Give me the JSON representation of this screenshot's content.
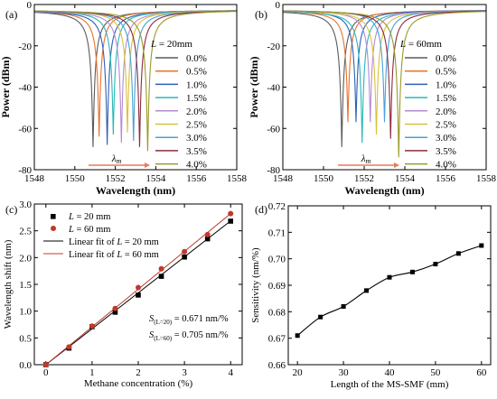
{
  "panels": {
    "a": {
      "label": "(a)",
      "xlabel": "Wavelength (nm)",
      "ylabel": "Power (dBm)",
      "xlim": [
        1548,
        1558
      ],
      "ylim": [
        -80,
        0
      ],
      "xticks": [
        "1548",
        "1550",
        "1552",
        "1554",
        "1556",
        "1558"
      ],
      "yticks": [
        "0",
        "-20",
        "-40",
        "-60",
        "-80"
      ],
      "legend_title": "L = 20mm",
      "arrow_label": "λm"
    },
    "b": {
      "label": "(b)",
      "xlabel": "Wavelength (nm)",
      "ylabel": "Power (dBm)",
      "xlim": [
        1548,
        1558
      ],
      "ylim": [
        -80,
        0
      ],
      "xticks": [
        "1548",
        "1550",
        "1552",
        "1554",
        "1556",
        "1558"
      ],
      "yticks": [
        "0",
        "-20",
        "-40",
        "-60",
        "-80"
      ],
      "legend_title": "L = 60mm",
      "arrow_label": "λm"
    },
    "c": {
      "label": "(c)",
      "xlabel": "Methane concentration (%)",
      "ylabel": "Wavelength shift (nm)",
      "xlim": [
        -0.25,
        4.25
      ],
      "ylim": [
        0,
        3.0
      ],
      "xticks": [
        "0",
        "1",
        "2",
        "3",
        "4"
      ],
      "yticks": [
        "0.0",
        "0.5",
        "1.0",
        "1.5",
        "2.0",
        "2.5",
        "3.0"
      ],
      "legend": [
        "L = 20 mm",
        "L = 60 mm",
        "Linear fit of L = 20 mm",
        "Linear fit of L = 60 mm"
      ],
      "annotations": [
        "S(L=20) = 0.671 nm/%",
        "S(L=60) = 0.705 nm/%"
      ]
    },
    "d": {
      "label": "(d)",
      "xlabel": "Length of the MS-SMF (mm)",
      "ylabel": "Sensitivity (nm/%)",
      "xlim": [
        18,
        62
      ],
      "ylim": [
        0.66,
        0.72
      ],
      "xticks": [
        "20",
        "30",
        "40",
        "50",
        "60"
      ],
      "yticks": [
        "0.66",
        "0.67",
        "0.68",
        "0.69",
        "0.70",
        "0.71",
        "0.72"
      ]
    }
  },
  "chart_data": [
    {
      "panel": "a",
      "type": "line",
      "title": "",
      "xlabel": "Wavelength (nm)",
      "ylabel": "Power (dBm)",
      "xlim": [
        1548,
        1558
      ],
      "ylim": [
        -80,
        0
      ],
      "legend_title": "L = 20mm",
      "legend_position": "right",
      "series": [
        {
          "name": "0.0%",
          "dip_center": 1550.9,
          "dip_min": -69,
          "color": "#5b5b5b"
        },
        {
          "name": "0.5%",
          "dip_center": 1551.2,
          "dip_min": -64,
          "color": "#e8722a"
        },
        {
          "name": "1.0%",
          "dip_center": 1551.6,
          "dip_min": -68,
          "color": "#2f5fb5"
        },
        {
          "name": "1.5%",
          "dip_center": 1551.9,
          "dip_min": -63,
          "color": "#2bb6b8"
        },
        {
          "name": "2.0%",
          "dip_center": 1552.3,
          "dip_min": -67,
          "color": "#b48bd6"
        },
        {
          "name": "2.5%",
          "dip_center": 1552.6,
          "dip_min": -62,
          "color": "#d9c23a"
        },
        {
          "name": "3.0%",
          "dip_center": 1552.9,
          "dip_min": -66,
          "color": "#4aa0d8"
        },
        {
          "name": "3.5%",
          "dip_center": 1553.2,
          "dip_min": -69,
          "color": "#8a2c3c"
        },
        {
          "name": "4.0%",
          "dip_center": 1553.6,
          "dip_min": -71,
          "color": "#9a9a2a"
        }
      ]
    },
    {
      "panel": "b",
      "type": "line",
      "title": "",
      "xlabel": "Wavelength (nm)",
      "ylabel": "Power (dBm)",
      "xlim": [
        1548,
        1558
      ],
      "ylim": [
        -80,
        0
      ],
      "legend_title": "L = 60mm",
      "legend_position": "right",
      "series": [
        {
          "name": "0.0%",
          "dip_center": 1550.9,
          "dip_min": -69,
          "color": "#5b5b5b"
        },
        {
          "name": "0.5%",
          "dip_center": 1551.2,
          "dip_min": -57,
          "color": "#e8722a"
        },
        {
          "name": "1.0%",
          "dip_center": 1551.6,
          "dip_min": -57,
          "color": "#2f5fb5"
        },
        {
          "name": "1.5%",
          "dip_center": 1551.9,
          "dip_min": -67,
          "color": "#2bb6b8"
        },
        {
          "name": "2.0%",
          "dip_center": 1552.3,
          "dip_min": -57,
          "color": "#b48bd6"
        },
        {
          "name": "2.5%",
          "dip_center": 1552.6,
          "dip_min": -63,
          "color": "#d9c23a"
        },
        {
          "name": "3.0%",
          "dip_center": 1553.0,
          "dip_min": -57,
          "color": "#4aa0d8"
        },
        {
          "name": "3.5%",
          "dip_center": 1553.3,
          "dip_min": -65,
          "color": "#8a2c3c"
        },
        {
          "name": "4.0%",
          "dip_center": 1553.7,
          "dip_min": -74,
          "color": "#9a9a2a"
        }
      ]
    },
    {
      "panel": "c",
      "type": "scatter",
      "title": "",
      "xlabel": "Methane concentration (%)",
      "ylabel": "Wavelength shift (nm)",
      "xlim": [
        -0.25,
        4.25
      ],
      "ylim": [
        0,
        3.0
      ],
      "legend_position": "top-left",
      "x": [
        0,
        0.5,
        1.0,
        1.5,
        2.0,
        2.5,
        3.0,
        3.5,
        4.0
      ],
      "series": [
        {
          "name": "L = 20 mm",
          "marker": "square",
          "color": "#000000",
          "values": [
            0.0,
            0.31,
            0.71,
            0.98,
            1.3,
            1.65,
            2.01,
            2.35,
            2.68
          ]
        },
        {
          "name": "L = 60 mm",
          "marker": "circle",
          "color": "#c0392b",
          "values": [
            0.0,
            0.33,
            0.72,
            1.05,
            1.44,
            1.79,
            2.11,
            2.43,
            2.82
          ]
        },
        {
          "name": "Linear fit of L = 20 mm",
          "type": "line",
          "color": "#000000",
          "slope": 0.671,
          "intercept": 0.0
        },
        {
          "name": "Linear fit of L = 60 mm",
          "type": "line",
          "color": "#c0392b",
          "slope": 0.705,
          "intercept": 0.0
        }
      ]
    },
    {
      "panel": "d",
      "type": "line",
      "title": "",
      "xlabel": "Length of the MS-SMF (mm)",
      "ylabel": "Sensitivity (nm/%)",
      "xlim": [
        18,
        62
      ],
      "ylim": [
        0.66,
        0.72
      ],
      "x": [
        20,
        25,
        30,
        35,
        40,
        45,
        50,
        55,
        60
      ],
      "series": [
        {
          "values": [
            0.671,
            0.678,
            0.682,
            0.688,
            0.693,
            0.695,
            0.698,
            0.702,
            0.705
          ],
          "color": "#000000"
        }
      ]
    }
  ]
}
